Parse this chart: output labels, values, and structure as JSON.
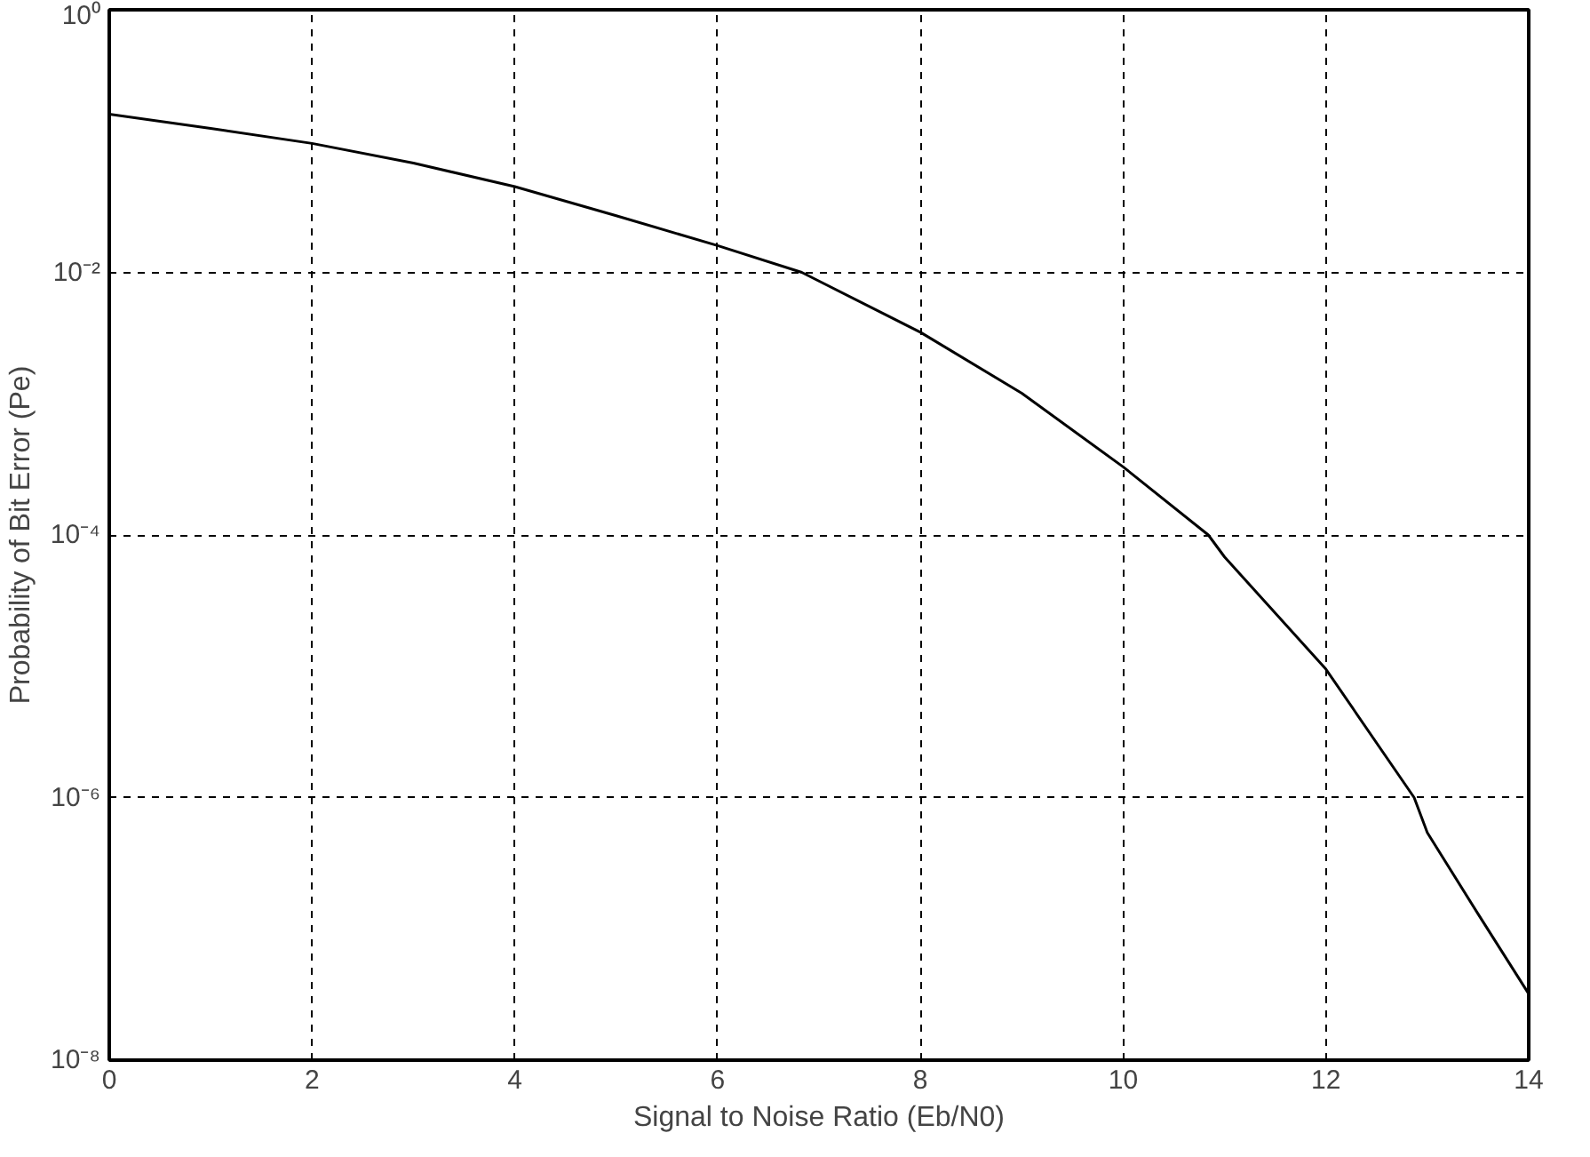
{
  "chart_data": {
    "type": "line",
    "xlabel": "Signal to Noise Ratio (Eb/N0)",
    "ylabel": "Probability of Bit Error (Pe)",
    "log": "y",
    "grid": true,
    "marker": "none",
    "line_style": "solid",
    "xlim": [
      0,
      14
    ],
    "xticks": [
      0,
      2,
      4,
      6,
      8,
      10,
      12,
      14
    ],
    "ylim": [
      1e-08,
      1
    ],
    "yticks": [
      {
        "value": 1,
        "label": "10⁰"
      },
      {
        "value": 0.01,
        "label": "10⁻²"
      },
      {
        "value": 0.0001,
        "label": "10⁻⁴"
      },
      {
        "value": 1e-06,
        "label": "10⁻⁶"
      },
      {
        "value": 1e-08,
        "label": "10⁻⁸"
      }
    ],
    "x": [
      0,
      1,
      2,
      3,
      4,
      5,
      6,
      6.83,
      8,
      9,
      10,
      10.84,
      11,
      12,
      12.87,
      13,
      13.5,
      14
    ],
    "series": [
      {
        "color": "#000000",
        "values": [
          0.16,
          0.125,
          0.096,
          0.068,
          0.045,
          0.027,
          0.016,
          0.01,
          0.0035,
          0.0012,
          0.00033,
          0.0001,
          6.8e-05,
          9.5e-06,
          1e-06,
          5.4e-07,
          1.3e-07,
          3.2e-08
        ]
      }
    ]
  }
}
